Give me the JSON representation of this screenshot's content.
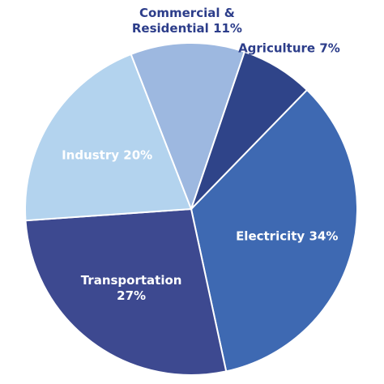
{
  "chart_data": {
    "type": "pie",
    "categories": [
      "Electricity",
      "Transportation",
      "Industry",
      "Commercial & Residential",
      "Agriculture"
    ],
    "values": [
      34,
      27,
      20,
      11,
      7
    ],
    "value_labels": [
      "34%",
      "27%",
      "20%",
      "11%",
      "7%"
    ],
    "colors": [
      "#3e69b2",
      "#3d4990",
      "#b3d3ee",
      "#9db8e0",
      "#2f4489"
    ]
  }
}
